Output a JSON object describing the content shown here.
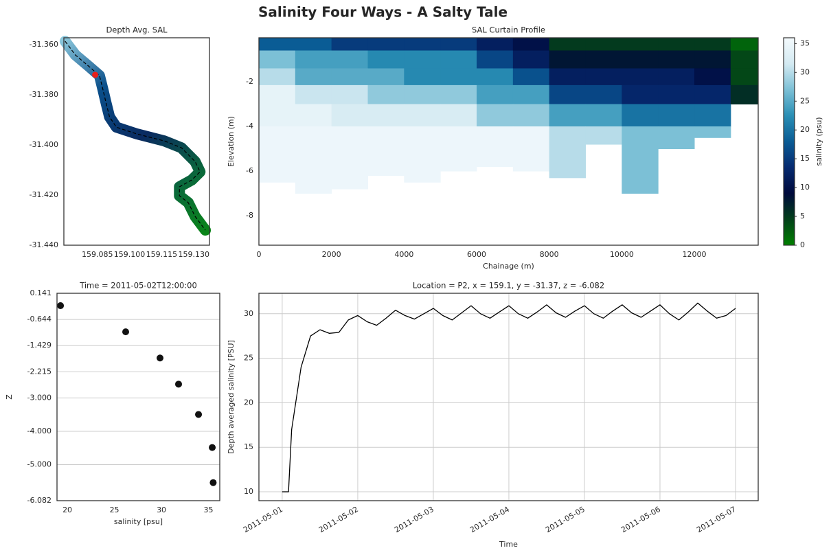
{
  "title": "Salinity Four Ways - A Salty Tale",
  "chart_data": [
    {
      "type": "map",
      "title": "Depth Avg. SAL",
      "xlim": [
        159.0694,
        159.1373
      ],
      "ylim": [
        -31.44,
        -31.3572
      ],
      "xticks": [
        159.085,
        {
          "value": 159.1,
          "label": "159.100"
        },
        159.115,
        {
          "value": 159.13,
          "label": "159.130"
        }
      ],
      "yticks": [
        {
          "value": -31.36,
          "label": "-31.360"
        },
        {
          "value": -31.38,
          "label": "-31.380"
        },
        {
          "value": -31.4,
          "label": "-31.400"
        },
        {
          "value": -31.42,
          "label": "-31.420"
        },
        {
          "value": -31.44,
          "label": "-31.440"
        }
      ],
      "track": {
        "color": "#000000",
        "x": [
          159.07,
          159.0748,
          159.0805,
          159.086,
          159.0876,
          159.0891,
          159.0907,
          159.0939,
          159.1035,
          159.1163,
          159.1242,
          159.1306,
          159.1329,
          159.129,
          159.1233,
          159.1233,
          159.1274,
          159.1306,
          159.1354
        ],
        "y": [
          -31.3586,
          -31.3641,
          -31.3682,
          -31.3723,
          -31.3778,
          -31.3833,
          -31.3888,
          -31.3929,
          -31.3956,
          -31.3984,
          -31.4011,
          -31.4066,
          -31.4107,
          -31.414,
          -31.4167,
          -31.4203,
          -31.423,
          -31.4285,
          -31.434
        ]
      },
      "point": {
        "x": 159.084,
        "y": -31.372,
        "color": "#e8201a"
      },
      "river_colors": [
        "#8cc8dc",
        "#0a4f8a",
        "#0a2a60",
        "#0a6a3a",
        "#0a8a10"
      ]
    },
    {
      "type": "heatmap",
      "title": "SAL Curtain Profile",
      "xlabel": "Chainage (m)",
      "ylabel": "Elevation (m)",
      "xlim": [
        0,
        13760
      ],
      "ylim": [
        -9.32,
        -0.03
      ],
      "xticks": [
        0,
        2000,
        4000,
        6000,
        8000,
        10000,
        12000
      ],
      "yticks": [
        -2,
        -4,
        -6,
        -8
      ],
      "x_edges": [
        0,
        1000,
        2000,
        3000,
        4000,
        5000,
        6000,
        7000,
        8000,
        9000,
        10000,
        11000,
        12000,
        13000,
        13760
      ],
      "bed": [
        -6.5,
        -7.0,
        -6.8,
        -6.2,
        -6.5,
        -6.0,
        -5.8,
        -6.0,
        -6.3,
        -4.8,
        -7.0,
        -5.0,
        -4.5,
        -3.0
      ],
      "layers": [
        {
          "top": -0.03,
          "bottom": -0.6,
          "values": [
            18,
            18,
            15,
            15,
            15,
            15,
            12,
            10,
            5,
            5,
            5,
            5,
            5,
            2
          ]
        },
        {
          "top": -0.6,
          "bottom": -1.4,
          "values": [
            27,
            24,
            24,
            22,
            22,
            22,
            16,
            12,
            8,
            8,
            8,
            8,
            8,
            4
          ]
        },
        {
          "top": -1.4,
          "bottom": -2.15,
          "values": [
            30,
            25,
            25,
            25,
            22,
            22,
            22,
            17,
            12,
            12,
            12,
            12,
            10,
            4
          ]
        },
        {
          "top": -2.15,
          "bottom": -3.0,
          "values": [
            34,
            31,
            31,
            28,
            28,
            28,
            24,
            24,
            16,
            16,
            13,
            13,
            13,
            6
          ]
        },
        {
          "top": -3.0,
          "bottom": -4.0,
          "values": [
            34,
            34,
            32,
            32,
            32,
            32,
            28,
            28,
            24,
            24,
            20,
            20,
            20,
            null
          ]
        },
        {
          "top": -4.0,
          "values": [
            35,
            35,
            35,
            35,
            35,
            35,
            35,
            35,
            30,
            30,
            27,
            27,
            27,
            null
          ]
        }
      ],
      "clim": [
        0,
        36
      ],
      "cticks": [
        0,
        5,
        10,
        15,
        20,
        25,
        30,
        35
      ],
      "colorbar_label": "salinity (psu)",
      "colormap": [
        "#008000",
        "#03401a",
        "#000a3c",
        "#062a70",
        "#0a5c95",
        "#2a8fb5",
        "#7cc0d6",
        "#d4eaf2",
        "#f4fafd"
      ]
    },
    {
      "type": "scatter",
      "title": "Time = 2011-05-02T12:00:00",
      "xlabel": "salinity [psu]",
      "ylabel": "Z",
      "xlim": [
        18.9,
        36.2
      ],
      "ylim": [
        -6.082,
        0.141
      ],
      "xticks": [
        20,
        25,
        30,
        35
      ],
      "yticks": [
        0.141,
        -0.644,
        -1.429,
        -2.215,
        {
          "value": -3.0,
          "label": "-3.000"
        },
        {
          "value": -4.0,
          "label": "-4.000"
        },
        {
          "value": -5.0,
          "label": "-5.000"
        },
        -6.082
      ],
      "grid": "y",
      "color": "#111111",
      "x": [
        19.27,
        26.2,
        29.85,
        31.82,
        33.94,
        35.4,
        35.5
      ],
      "values": [
        -0.231,
        -1.016,
        -1.801,
        -2.586,
        -3.495,
        -4.487,
        -5.54
      ]
    },
    {
      "type": "line",
      "title": "Location = P2, x = 159.1, y = -31.37, z = -6.082",
      "xlabel": "Time",
      "ylabel": "Depth averaged salinity [PSU]",
      "xlim": [
        "2011-04-30T16:36",
        "2011-05-07T07:12"
      ],
      "ylim": [
        9.0,
        32.3
      ],
      "xticks": [
        "2011-05-01",
        "2011-05-02",
        "2011-05-03",
        "2011-05-04",
        "2011-05-05",
        "2011-05-06",
        "2011-05-07"
      ],
      "yticks": [
        10,
        15,
        20,
        25,
        30
      ],
      "grid": "both",
      "xtick_rotation": -30,
      "series": [
        {
          "color": "#000000",
          "x": [
            "2011-05-01T00:00",
            "2011-05-01T02:00",
            "2011-05-01T03:00",
            "2011-05-01T06:00",
            "2011-05-01T09:00",
            "2011-05-01T12:00",
            "2011-05-01T15:00",
            "2011-05-01T18:00",
            "2011-05-01T21:00",
            "2011-05-02T00:00",
            "2011-05-02T03:00",
            "2011-05-02T06:00",
            "2011-05-02T09:00",
            "2011-05-02T12:00",
            "2011-05-02T15:00",
            "2011-05-02T18:00",
            "2011-05-02T21:00",
            "2011-05-03T00:00",
            "2011-05-03T03:00",
            "2011-05-03T06:00",
            "2011-05-03T09:00",
            "2011-05-03T12:00",
            "2011-05-03T15:00",
            "2011-05-03T18:00",
            "2011-05-03T21:00",
            "2011-05-04T00:00",
            "2011-05-04T03:00",
            "2011-05-04T06:00",
            "2011-05-04T09:00",
            "2011-05-04T12:00",
            "2011-05-04T15:00",
            "2011-05-04T18:00",
            "2011-05-04T21:00",
            "2011-05-05T00:00",
            "2011-05-05T03:00",
            "2011-05-05T06:00",
            "2011-05-05T09:00",
            "2011-05-05T12:00",
            "2011-05-05T15:00",
            "2011-05-05T18:00",
            "2011-05-05T21:00",
            "2011-05-06T00:00",
            "2011-05-06T03:00",
            "2011-05-06T06:00",
            "2011-05-06T09:00",
            "2011-05-06T12:00",
            "2011-05-06T15:00",
            "2011-05-06T18:00",
            "2011-05-06T21:00",
            "2011-05-07T00:00"
          ],
          "values": [
            10,
            10,
            17.0,
            24.0,
            27.5,
            28.2,
            27.8,
            27.9,
            29.3,
            29.8,
            29.1,
            28.7,
            29.5,
            30.4,
            29.8,
            29.4,
            30.0,
            30.6,
            29.8,
            29.3,
            30.1,
            30.9,
            30.0,
            29.5,
            30.2,
            30.9,
            30.0,
            29.5,
            30.2,
            31.0,
            30.1,
            29.6,
            30.3,
            30.9,
            30.0,
            29.5,
            30.3,
            31.0,
            30.1,
            29.6,
            30.3,
            31.0,
            30.0,
            29.3,
            30.2,
            31.2,
            30.3,
            29.5,
            29.8,
            30.6
          ]
        }
      ]
    }
  ]
}
